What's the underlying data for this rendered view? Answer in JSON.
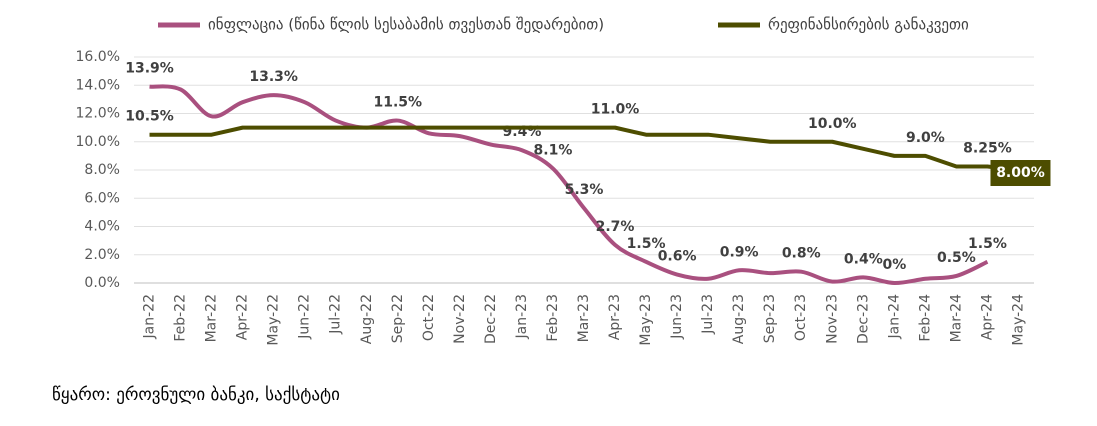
{
  "chart_data": {
    "type": "line",
    "categories": [
      "Jan-22",
      "Feb-22",
      "Mar-22",
      "Apr-22",
      "May-22",
      "Jun-22",
      "Jul-22",
      "Aug-22",
      "Sep-22",
      "Oct-22",
      "Nov-22",
      "Dec-22",
      "Jan-23",
      "Feb-23",
      "Mar-23",
      "Apr-23",
      "May-23",
      "Jun-23",
      "Jul-23",
      "Aug-23",
      "Sep-23",
      "Oct-23",
      "Nov-23",
      "Dec-23",
      "Jan-24",
      "Feb-24",
      "Mar-24",
      "Apr-24",
      "May-24"
    ],
    "series": [
      {
        "name": "ინფლაცია (წინა წლის სესაბამის თვესთან შედარებით)",
        "color": "#a9507f",
        "values": [
          13.9,
          13.7,
          11.8,
          12.8,
          13.3,
          12.8,
          11.5,
          11.0,
          11.5,
          10.6,
          10.4,
          9.8,
          9.4,
          8.1,
          5.3,
          2.7,
          1.5,
          0.6,
          0.3,
          0.9,
          0.7,
          0.8,
          0.1,
          0.4,
          0,
          0.3,
          0.5,
          1.5,
          null
        ],
        "value_labels": [
          "13.9%",
          null,
          null,
          null,
          "13.3%",
          null,
          null,
          null,
          "11.5%",
          null,
          null,
          null,
          "9.4%",
          "8.1%",
          "5.3%",
          "2.7%",
          "1.5%",
          "0.6%",
          null,
          "0.9%",
          null,
          "0.8%",
          null,
          "0.4%",
          "0%",
          null,
          "0.5%",
          "1.5%",
          null
        ]
      },
      {
        "name": "რეფინანსირების განაკვეთი",
        "color": "#4d4d00",
        "values": [
          10.5,
          10.5,
          10.5,
          11,
          11,
          11,
          11,
          11,
          11,
          11,
          11,
          11,
          11,
          11,
          11,
          11,
          10.5,
          10.5,
          10.5,
          10.25,
          10,
          10,
          10,
          9.5,
          9,
          9,
          8.25,
          8.25,
          8
        ],
        "value_labels": [
          "10.5%",
          null,
          null,
          null,
          null,
          null,
          null,
          null,
          null,
          null,
          null,
          null,
          null,
          null,
          null,
          "11.0%",
          null,
          null,
          null,
          null,
          null,
          null,
          "10.0%",
          null,
          null,
          "9.0%",
          null,
          "8.25%",
          "8.00%"
        ]
      }
    ],
    "ylim": [
      0,
      16
    ],
    "yticks": [
      {
        "value": 0,
        "label": "0.0%"
      },
      {
        "value": 2,
        "label": "2.0%"
      },
      {
        "value": 4,
        "label": "4.0%"
      },
      {
        "value": 6,
        "label": "6.0%"
      },
      {
        "value": 8,
        "label": "8.0%"
      },
      {
        "value": 10,
        "label": "10.0%"
      },
      {
        "value": 12,
        "label": "12.0%"
      },
      {
        "value": 14,
        "label": "14.0%"
      },
      {
        "value": 16,
        "label": "16.0%"
      }
    ],
    "grid": true,
    "legend": "top",
    "source": "წყარო: ეროვნული ბანკი, საქსტატი"
  }
}
